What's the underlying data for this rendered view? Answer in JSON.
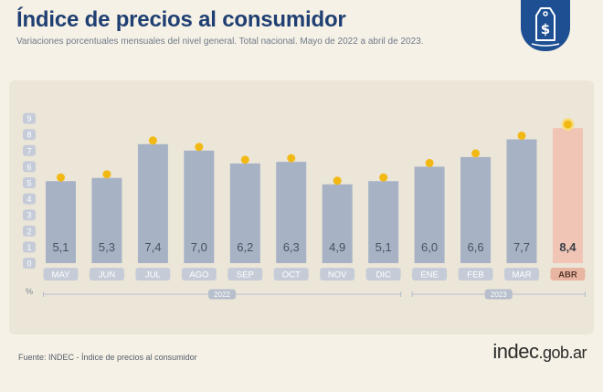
{
  "header": {
    "title": "Índice de precios al consumidor",
    "subtitle": "Variaciones porcentuales mensuales del nivel general. Total nacional. Mayo de 2022 a abril de 2023."
  },
  "colors": {
    "title": "#1f3f73",
    "bar": "#a7b2c5",
    "bar_highlight": "#f0c5b5",
    "marker": "#f2b915",
    "label_pill": "#c5ccd8",
    "label_pill_highlight": "#e9b5a3",
    "badge": "#1e4f93"
  },
  "badge": {
    "icon": "price-tag-dollar-icon"
  },
  "chart_data": {
    "type": "bar",
    "categories": [
      "MAY",
      "JUN",
      "JUL",
      "AGO",
      "SEP",
      "OCT",
      "NOV",
      "DIC",
      "ENE",
      "FEB",
      "MAR",
      "ABR"
    ],
    "values": [
      5.1,
      5.3,
      7.4,
      7.0,
      6.2,
      6.3,
      4.9,
      5.1,
      6.0,
      6.6,
      7.7,
      8.4
    ],
    "value_labels": [
      "5,1",
      "5,3",
      "7,4",
      "7,0",
      "6,2",
      "6,3",
      "4,9",
      "5,1",
      "6,0",
      "6,6",
      "7,7",
      "8,4"
    ],
    "highlight_index": 11,
    "y_ticks": [
      "0",
      "1",
      "2",
      "3",
      "4",
      "5",
      "6",
      "7",
      "8",
      "9"
    ],
    "ylabel": "%",
    "ylim": [
      0,
      9
    ],
    "grid": false,
    "year_groups": [
      {
        "label": "2022",
        "start": 0,
        "end": 7
      },
      {
        "label": "2023",
        "start": 8,
        "end": 11
      }
    ]
  },
  "footer": {
    "source": "Fuente: INDEC - Índice de precios al consumidor",
    "brand_name": "indec",
    "brand_tld": ".gob.ar"
  }
}
